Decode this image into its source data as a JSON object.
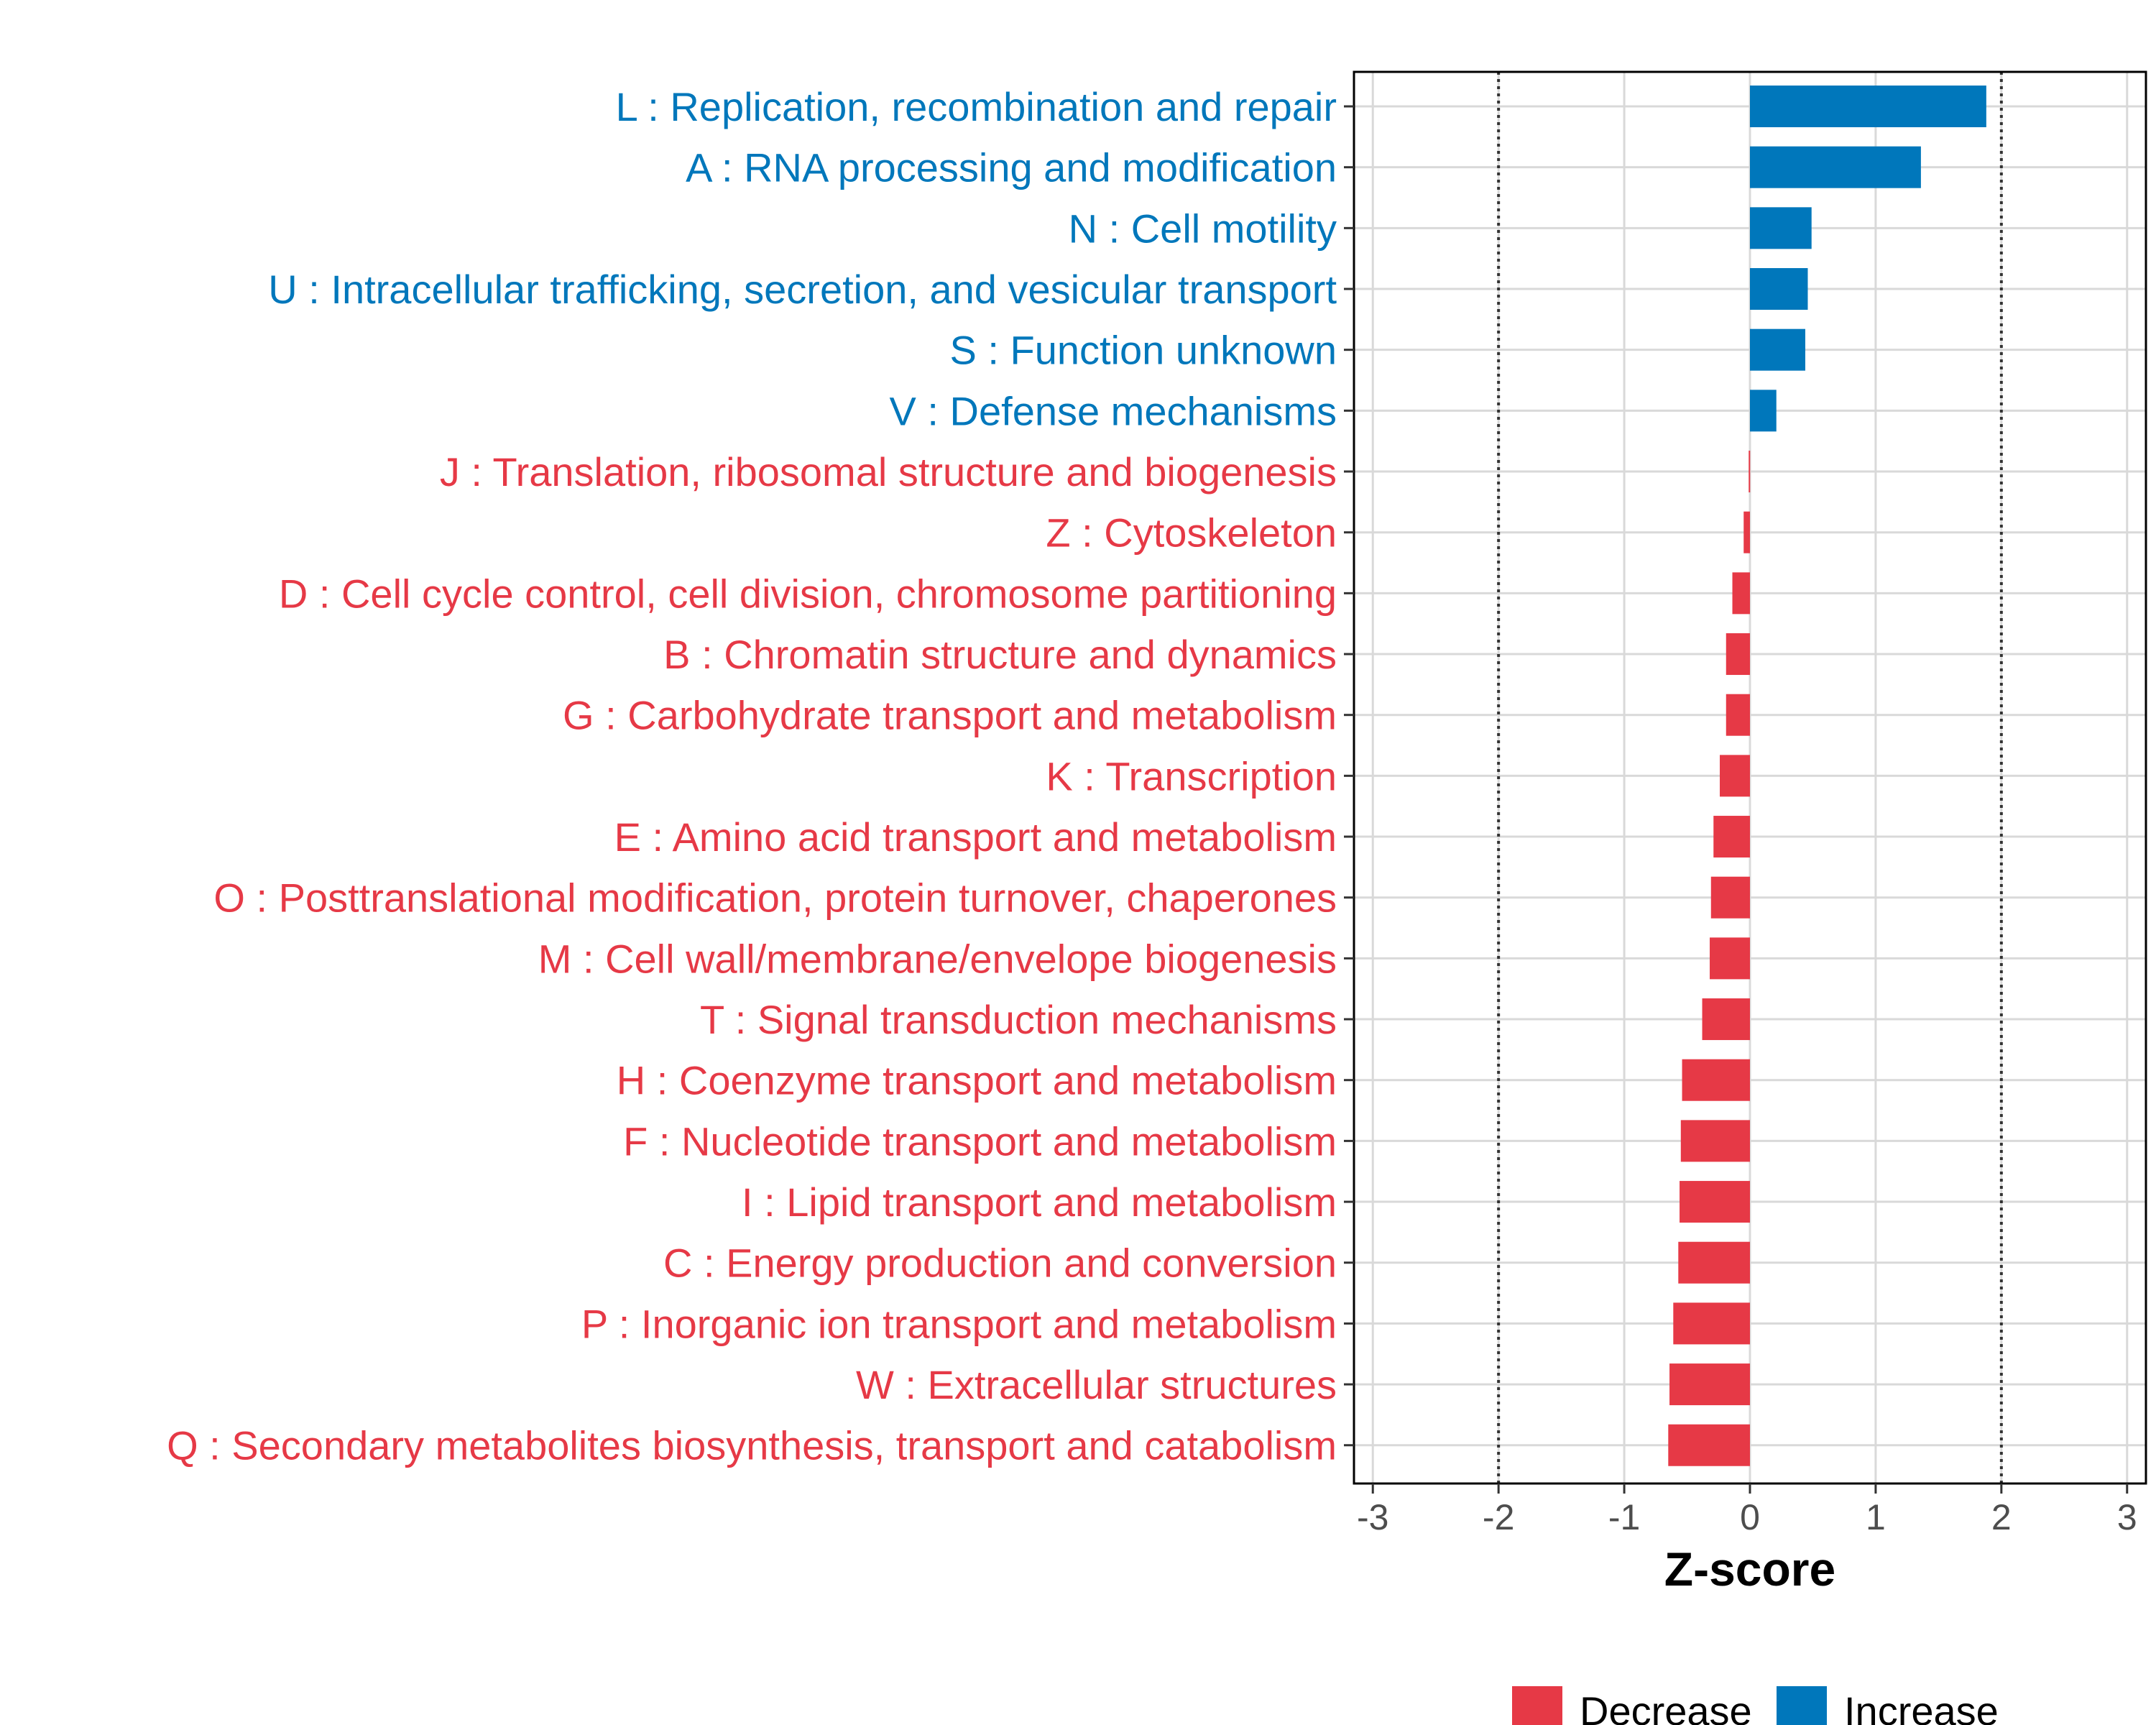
{
  "chart_data": {
    "type": "bar",
    "orientation": "horizontal",
    "xlabel": "Z-score",
    "xlim": [
      -3.15,
      3.15
    ],
    "xticks": [
      -3,
      -2,
      -1,
      0,
      1,
      2,
      3
    ],
    "tick_labels": [
      "-3",
      "-2",
      "-1",
      "0",
      "1",
      "2",
      "3"
    ],
    "reference_lines": [
      -2,
      2
    ],
    "grid": true,
    "legend_position": "bottom",
    "colors": {
      "Decrease": "#e63946",
      "Increase": "#0077bb"
    },
    "legend": [
      {
        "label": "Decrease",
        "color": "#e63946"
      },
      {
        "label": "Increase",
        "color": "#0077bb"
      }
    ],
    "categories": [
      "L : Replication, recombination and repair",
      "A : RNA processing and modification",
      "N : Cell motility",
      "U : Intracellular trafficking, secretion, and vesicular transport",
      "S : Function unknown",
      "V : Defense mechanisms",
      "J : Translation, ribosomal structure and biogenesis",
      "Z : Cytoskeleton",
      "D : Cell cycle control, cell division, chromosome partitioning",
      "B : Chromatin structure and dynamics",
      "G : Carbohydrate transport and metabolism",
      "K : Transcription",
      "E : Amino acid transport and metabolism",
      "O : Posttranslational modification, protein turnover, chaperones",
      "M : Cell wall/membrane/envelope biogenesis",
      "T : Signal transduction mechanisms",
      "H : Coenzyme transport and metabolism",
      "F : Nucleotide transport and metabolism",
      "I : Lipid transport and metabolism",
      "C : Energy production and conversion",
      "P : Inorganic ion transport and metabolism",
      "W : Extracellular structures",
      "Q : Secondary metabolites biosynthesis, transport and catabolism"
    ],
    "values": [
      1.88,
      1.36,
      0.49,
      0.46,
      0.44,
      0.21,
      -0.01,
      -0.05,
      -0.14,
      -0.19,
      -0.19,
      -0.24,
      -0.29,
      -0.31,
      -0.32,
      -0.38,
      -0.54,
      -0.55,
      -0.56,
      -0.57,
      -0.61,
      -0.64,
      -0.65
    ],
    "groups": [
      "Increase",
      "Increase",
      "Increase",
      "Increase",
      "Increase",
      "Increase",
      "Decrease",
      "Decrease",
      "Decrease",
      "Decrease",
      "Decrease",
      "Decrease",
      "Decrease",
      "Decrease",
      "Decrease",
      "Decrease",
      "Decrease",
      "Decrease",
      "Decrease",
      "Decrease",
      "Decrease",
      "Decrease",
      "Decrease"
    ]
  }
}
